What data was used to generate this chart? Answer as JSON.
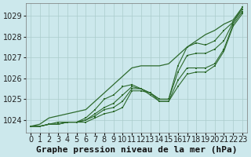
{
  "title": "Graphe pression niveau de la mer (hPa)",
  "bg_color": "#cce8ec",
  "grid_color": "#aacccc",
  "line_color": "#2d6a2d",
  "x_labels": [
    "0",
    "1",
    "2",
    "3",
    "4",
    "5",
    "6",
    "7",
    "8",
    "9",
    "10",
    "11",
    "12",
    "13",
    "14",
    "15",
    "16",
    "17",
    "18",
    "19",
    "20",
    "21",
    "22",
    "23"
  ],
  "ylim": [
    1023.4,
    1029.6
  ],
  "yticks": [
    1024,
    1025,
    1026,
    1027,
    1028,
    1029
  ],
  "series": [
    [
      1023.7,
      1023.7,
      1023.8,
      1023.8,
      1023.9,
      1023.9,
      1023.9,
      1024.1,
      1024.3,
      1024.4,
      1024.6,
      1025.4,
      1025.4,
      1025.3,
      1024.9,
      1024.9,
      1025.6,
      1026.2,
      1026.3,
      1026.3,
      1026.6,
      1027.3,
      1028.5,
      1029.1
    ],
    [
      1023.7,
      1023.7,
      1023.8,
      1023.8,
      1023.9,
      1023.9,
      1024.0,
      1024.2,
      1024.5,
      1024.6,
      1024.9,
      1025.5,
      1025.5,
      1025.2,
      1024.9,
      1024.9,
      1025.9,
      1026.5,
      1026.5,
      1026.5,
      1026.7,
      1027.4,
      1028.6,
      1029.2
    ],
    [
      1023.7,
      1023.7,
      1023.8,
      1023.8,
      1023.9,
      1023.9,
      1024.0,
      1024.3,
      1024.6,
      1024.8,
      1025.2,
      1025.6,
      1025.5,
      1025.3,
      1025.0,
      1025.0,
      1026.3,
      1027.1,
      1027.2,
      1027.2,
      1027.4,
      1027.8,
      1028.7,
      1029.3
    ],
    [
      1023.7,
      1023.7,
      1023.8,
      1023.9,
      1023.9,
      1023.9,
      1024.1,
      1024.5,
      1025.0,
      1025.2,
      1025.6,
      1025.7,
      1025.5,
      1025.3,
      1025.0,
      1025.0,
      1026.6,
      1027.5,
      1027.7,
      1027.6,
      1027.8,
      1028.3,
      1028.7,
      1029.4
    ]
  ],
  "series_top": [
    1023.7,
    1023.8,
    1024.1,
    1024.2,
    1024.3,
    1024.4,
    1024.5,
    1024.9,
    1025.3,
    1025.7,
    1026.1,
    1026.5,
    1026.6,
    1026.6,
    1026.6,
    1026.7,
    1027.1,
    1027.5,
    1027.8,
    1028.1,
    1028.3,
    1028.6,
    1028.8,
    1029.4
  ],
  "xlabel_fontsize": 7,
  "ylabel_fontsize": 7,
  "title_fontsize": 8
}
